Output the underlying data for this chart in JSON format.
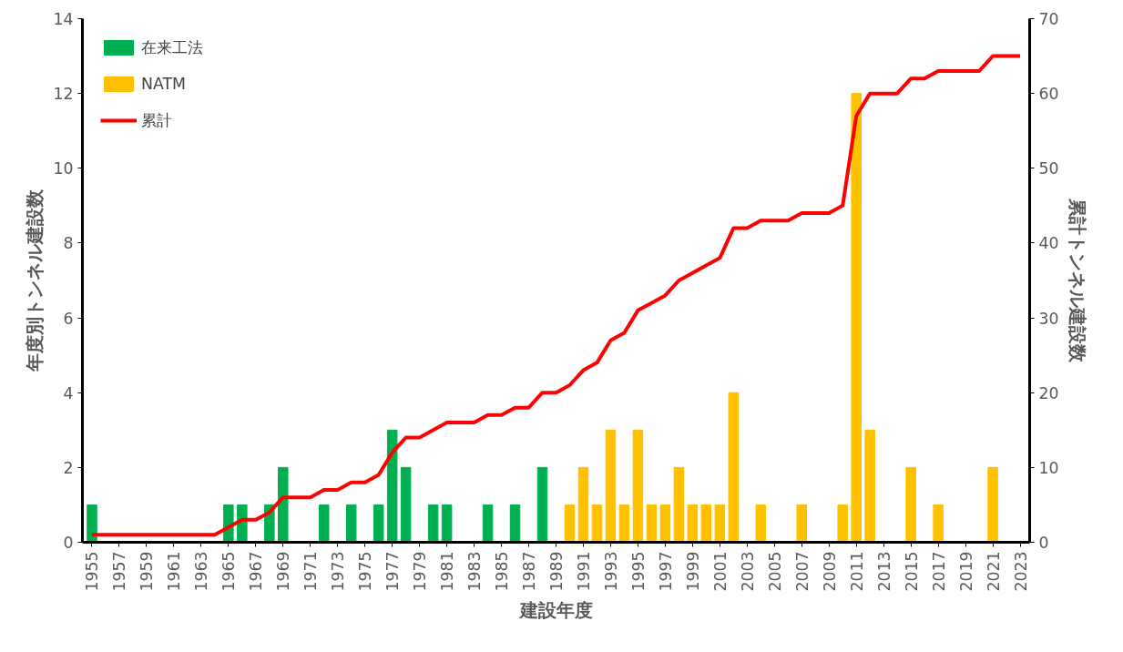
{
  "chart_data": {
    "type": "bar",
    "xlabel": "建設年度",
    "ylabel": "年度別トンネル建設数",
    "y2label": "累計トンネル建設数",
    "categories": [
      "1955",
      null,
      "1957",
      null,
      "1959",
      null,
      "1961",
      null,
      "1963",
      null,
      "1965",
      null,
      "1967",
      null,
      "1969",
      null,
      "1971",
      null,
      "1973",
      null,
      "1975",
      null,
      "1977",
      null,
      "1979",
      null,
      "1981",
      null,
      "1983",
      null,
      "1985",
      null,
      "1987",
      null,
      "1989",
      null,
      "1991",
      null,
      "1993",
      null,
      "1995",
      null,
      "1997",
      null,
      "1999",
      null,
      "2001",
      null,
      "2003",
      null,
      "2005",
      null,
      "2007",
      null,
      "2009",
      null,
      "2011",
      null,
      "2013",
      null,
      "2015",
      null,
      "2017",
      null,
      "2019",
      null,
      "2021",
      null,
      "2023"
    ],
    "series": [
      {
        "name": "在来工法",
        "color": "#00b050",
        "values": [
          1,
          null,
          null,
          null,
          null,
          null,
          null,
          null,
          null,
          null,
          1,
          1,
          null,
          1,
          2,
          null,
          null,
          1,
          null,
          1,
          null,
          1,
          3,
          2,
          null,
          1,
          1,
          null,
          null,
          1,
          null,
          1,
          null,
          2,
          null,
          null,
          null,
          null,
          null,
          null,
          null,
          null,
          null,
          null,
          null,
          null,
          null,
          null,
          null,
          null,
          null,
          null,
          null,
          null,
          null,
          null,
          null,
          null,
          null,
          null,
          null,
          null,
          null,
          null,
          null,
          null,
          null,
          null,
          null
        ]
      },
      {
        "name": "NATM",
        "color": "#ffc000",
        "values": [
          null,
          null,
          null,
          null,
          null,
          null,
          null,
          null,
          null,
          null,
          null,
          null,
          null,
          null,
          null,
          null,
          null,
          null,
          null,
          null,
          null,
          null,
          null,
          null,
          null,
          null,
          null,
          null,
          null,
          null,
          null,
          null,
          null,
          null,
          null,
          1,
          2,
          1,
          3,
          1,
          3,
          1,
          1,
          2,
          1,
          1,
          1,
          4,
          null,
          1,
          null,
          null,
          1,
          null,
          null,
          1,
          12,
          3,
          null,
          null,
          2,
          null,
          1,
          null,
          null,
          null,
          2,
          null,
          null
        ]
      },
      {
        "name": "累計",
        "type": "line",
        "axis": "y2",
        "color": "#ff0000",
        "values": [
          1,
          1,
          1,
          1,
          1,
          1,
          1,
          1,
          1,
          1,
          2,
          3,
          3,
          4,
          6,
          6,
          6,
          7,
          7,
          8,
          8,
          9,
          12,
          14,
          14,
          15,
          16,
          16,
          16,
          17,
          17,
          18,
          18,
          20,
          20,
          21,
          23,
          24,
          27,
          28,
          31,
          32,
          33,
          35,
          36,
          37,
          38,
          42,
          42,
          43,
          43,
          43,
          44,
          44,
          44,
          45,
          57,
          60,
          60,
          60,
          62,
          62,
          63,
          63,
          63,
          63,
          65,
          65,
          65
        ]
      }
    ],
    "ylim": [
      0,
      14
    ],
    "yticks": [
      0,
      2,
      4,
      6,
      8,
      10,
      12,
      14
    ],
    "y2lim": [
      0,
      70
    ],
    "y2ticks": [
      0,
      10,
      20,
      30,
      40,
      50,
      60,
      70
    ],
    "grid": false,
    "legend": "top left"
  }
}
